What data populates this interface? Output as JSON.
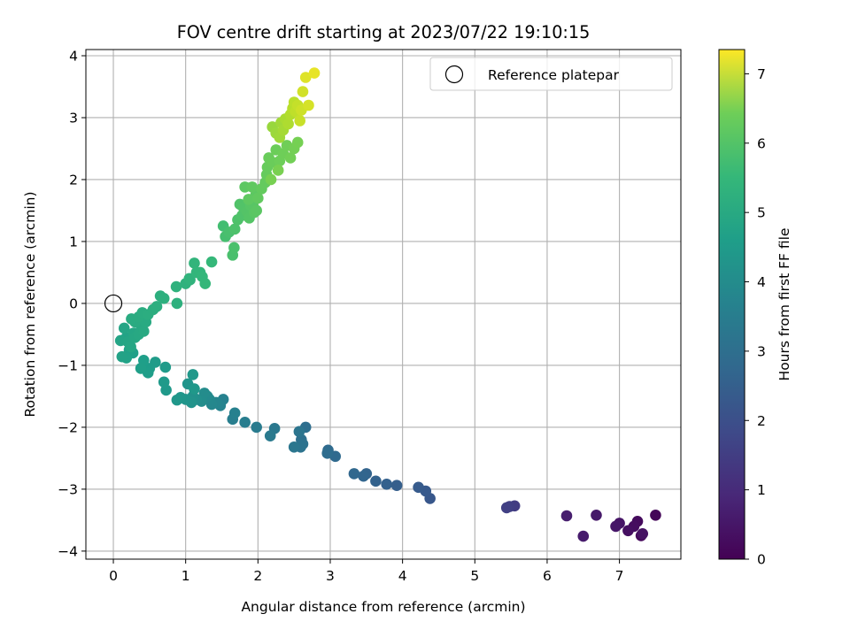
{
  "chart_data": {
    "type": "scatter",
    "title": "FOV centre drift starting at 2023/07/22 19:10:15",
    "xlabel": "Angular distance from reference (arcmin)",
    "ylabel": "Rotation from reference (arcmin)",
    "xlim": [
      -0.38,
      7.85
    ],
    "ylim": [
      -4.13,
      4.1
    ],
    "xticks": [
      0,
      1,
      2,
      3,
      4,
      5,
      6,
      7
    ],
    "yticks": [
      -4,
      -3,
      -2,
      -1,
      0,
      1,
      2,
      3,
      4
    ],
    "grid": true,
    "legend": {
      "position": "top-right",
      "entries": [
        "Reference platepar"
      ]
    },
    "reference_point": {
      "x": 0,
      "y": 0
    },
    "colorbar": {
      "label": "Hours from first FF file",
      "range": [
        0,
        7.35
      ],
      "ticks": [
        0,
        1,
        2,
        3,
        4,
        5,
        6,
        7
      ],
      "colormap": "viridis"
    },
    "points": [
      [
        7.5,
        -3.42,
        0.1
      ],
      [
        7.3,
        -3.75,
        0.15
      ],
      [
        7.25,
        -3.52,
        0.2
      ],
      [
        7.2,
        -3.6,
        0.25
      ],
      [
        7.12,
        -3.67,
        0.3
      ],
      [
        7.32,
        -3.72,
        0.35
      ],
      [
        7.0,
        -3.55,
        0.4
      ],
      [
        6.95,
        -3.6,
        0.45
      ],
      [
        6.68,
        -3.42,
        0.5
      ],
      [
        6.5,
        -3.76,
        0.55
      ],
      [
        6.27,
        -3.43,
        0.6
      ],
      [
        5.55,
        -3.27,
        1.3
      ],
      [
        5.48,
        -3.28,
        1.35
      ],
      [
        5.44,
        -3.3,
        1.4
      ],
      [
        4.38,
        -3.15,
        2.0
      ],
      [
        4.32,
        -3.03,
        2.05
      ],
      [
        4.22,
        -2.97,
        2.1
      ],
      [
        3.92,
        -2.94,
        2.2
      ],
      [
        3.78,
        -2.92,
        2.25
      ],
      [
        3.63,
        -2.87,
        2.3
      ],
      [
        3.5,
        -2.75,
        2.35
      ],
      [
        3.46,
        -2.79,
        2.4
      ],
      [
        3.33,
        -2.75,
        2.45
      ],
      [
        3.07,
        -2.47,
        2.5
      ],
      [
        2.97,
        -2.37,
        2.55
      ],
      [
        2.96,
        -2.42,
        2.6
      ],
      [
        2.66,
        -2.0,
        2.65
      ],
      [
        2.6,
        -2.2,
        2.7
      ],
      [
        2.62,
        -2.27,
        2.75
      ],
      [
        2.59,
        -2.32,
        2.8
      ],
      [
        2.57,
        -2.07,
        2.85
      ],
      [
        2.5,
        -2.32,
        2.9
      ],
      [
        2.23,
        -2.02,
        2.95
      ],
      [
        2.17,
        -2.14,
        3.0
      ],
      [
        1.98,
        -2.0,
        3.05
      ],
      [
        1.82,
        -1.92,
        3.1
      ],
      [
        1.65,
        -1.87,
        3.15
      ],
      [
        1.68,
        -1.77,
        3.2
      ],
      [
        1.52,
        -1.55,
        3.25
      ],
      [
        1.48,
        -1.65,
        3.3
      ],
      [
        1.42,
        -1.6,
        3.35
      ],
      [
        1.36,
        -1.63,
        3.4
      ],
      [
        1.33,
        -1.55,
        3.45
      ],
      [
        1.3,
        -1.5,
        3.5
      ],
      [
        1.26,
        -1.45,
        3.55
      ],
      [
        1.22,
        -1.58,
        3.6
      ],
      [
        1.15,
        -1.55,
        3.65
      ],
      [
        1.1,
        -1.5,
        3.7
      ],
      [
        1.08,
        -1.6,
        3.75
      ],
      [
        1.03,
        -1.3,
        3.8
      ],
      [
        1.0,
        -1.55,
        3.82
      ],
      [
        0.93,
        -1.52,
        3.85
      ],
      [
        0.88,
        -1.56,
        3.88
      ],
      [
        1.1,
        -1.15,
        3.9
      ],
      [
        1.12,
        -1.38,
        3.92
      ],
      [
        0.73,
        -1.4,
        3.95
      ],
      [
        0.7,
        -1.27,
        3.97
      ],
      [
        0.72,
        -1.03,
        4.0
      ],
      [
        0.58,
        -0.95,
        4.02
      ],
      [
        0.5,
        -1.05,
        4.05
      ],
      [
        0.48,
        -1.12,
        4.07
      ],
      [
        0.42,
        -0.92,
        4.1
      ],
      [
        0.38,
        -1.05,
        4.12
      ],
      [
        0.27,
        -0.8,
        4.15
      ],
      [
        0.22,
        -0.75,
        4.17
      ],
      [
        0.18,
        -0.88,
        4.2
      ],
      [
        0.12,
        -0.86,
        4.22
      ],
      [
        0.18,
        -0.55,
        4.25
      ],
      [
        0.1,
        -0.6,
        4.27
      ],
      [
        0.15,
        -0.4,
        4.3
      ],
      [
        0.2,
        -0.62,
        4.32
      ],
      [
        0.24,
        -0.7,
        4.34
      ],
      [
        0.28,
        -0.48,
        4.36
      ],
      [
        0.3,
        -0.55,
        4.38
      ],
      [
        0.35,
        -0.5,
        4.4
      ],
      [
        0.38,
        -0.35,
        4.42
      ],
      [
        0.42,
        -0.45,
        4.44
      ],
      [
        0.45,
        -0.3,
        4.46
      ],
      [
        0.3,
        -0.3,
        4.48
      ],
      [
        0.25,
        -0.25,
        4.5
      ],
      [
        0.35,
        -0.22,
        4.52
      ],
      [
        0.4,
        -0.15,
        4.54
      ],
      [
        0.48,
        -0.18,
        4.56
      ],
      [
        0.55,
        -0.1,
        4.58
      ],
      [
        0.6,
        -0.05,
        4.6
      ],
      [
        0.65,
        0.12,
        4.62
      ],
      [
        0.7,
        0.08,
        4.64
      ],
      [
        0.88,
        0.0,
        4.66
      ],
      [
        0.87,
        0.27,
        4.7
      ],
      [
        1.0,
        0.32,
        4.72
      ],
      [
        1.06,
        0.38,
        4.74
      ],
      [
        1.05,
        0.4,
        4.76
      ],
      [
        1.12,
        0.65,
        4.8
      ],
      [
        1.15,
        0.5,
        4.82
      ],
      [
        1.2,
        0.5,
        4.84
      ],
      [
        1.23,
        0.43,
        4.86
      ],
      [
        1.27,
        0.32,
        4.88
      ],
      [
        1.36,
        0.67,
        4.9
      ],
      [
        1.52,
        1.25,
        5.1
      ],
      [
        1.55,
        1.08,
        5.15
      ],
      [
        1.6,
        1.15,
        5.18
      ],
      [
        1.65,
        0.78,
        5.2
      ],
      [
        1.67,
        0.9,
        5.22
      ],
      [
        1.68,
        1.2,
        5.24
      ],
      [
        1.72,
        1.35,
        5.26
      ],
      [
        1.78,
        1.42,
        5.28
      ],
      [
        1.75,
        1.6,
        5.3
      ],
      [
        1.8,
        1.55,
        5.32
      ],
      [
        1.85,
        1.48,
        5.34
      ],
      [
        1.88,
        1.38,
        5.36
      ],
      [
        1.9,
        1.58,
        5.38
      ],
      [
        1.93,
        1.6,
        5.4
      ],
      [
        1.95,
        1.47,
        5.42
      ],
      [
        1.98,
        1.5,
        5.44
      ],
      [
        1.97,
        1.75,
        5.46
      ],
      [
        1.82,
        1.88,
        5.48
      ],
      [
        1.87,
        1.68,
        5.5
      ],
      [
        1.92,
        1.88,
        5.52
      ],
      [
        2.0,
        1.7,
        5.54
      ],
      [
        2.05,
        1.85,
        5.56
      ],
      [
        2.1,
        1.95,
        5.58
      ],
      [
        2.12,
        2.08,
        5.6
      ],
      [
        2.13,
        2.2,
        5.62
      ],
      [
        2.15,
        2.35,
        5.64
      ],
      [
        2.2,
        2.28,
        5.66
      ],
      [
        2.25,
        2.48,
        5.68
      ],
      [
        2.3,
        2.3,
        5.7
      ],
      [
        2.35,
        2.42,
        5.72
      ],
      [
        2.4,
        2.55,
        5.74
      ],
      [
        2.45,
        2.35,
        5.76
      ],
      [
        2.5,
        2.5,
        5.78
      ],
      [
        2.55,
        2.6,
        5.8
      ],
      [
        2.18,
        2.0,
        5.82
      ],
      [
        2.28,
        2.15,
        5.84
      ],
      [
        2.2,
        2.85,
        6.2
      ],
      [
        2.25,
        2.75,
        6.25
      ],
      [
        2.3,
        2.68,
        6.28
      ],
      [
        2.32,
        2.92,
        6.3
      ],
      [
        2.35,
        2.8,
        6.35
      ],
      [
        2.38,
        2.98,
        6.4
      ],
      [
        2.42,
        2.9,
        6.45
      ],
      [
        2.45,
        3.05,
        6.5
      ],
      [
        2.48,
        3.15,
        6.55
      ],
      [
        2.5,
        3.25,
        6.6
      ],
      [
        2.52,
        3.1,
        6.65
      ],
      [
        2.55,
        3.2,
        6.7
      ],
      [
        2.58,
        2.95,
        6.75
      ],
      [
        2.6,
        3.12,
        6.8
      ],
      [
        2.62,
        3.42,
        6.85
      ],
      [
        2.7,
        3.2,
        6.9
      ],
      [
        2.66,
        3.65,
        7.0
      ],
      [
        2.78,
        3.72,
        7.1
      ]
    ]
  }
}
